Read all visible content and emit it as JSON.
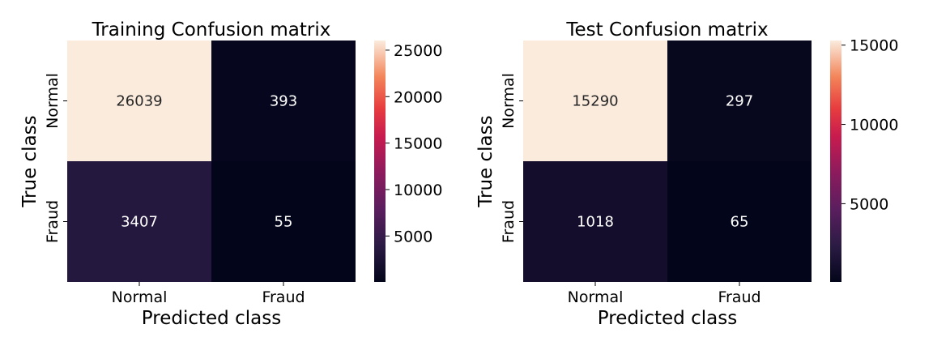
{
  "chart_data": [
    {
      "type": "heatmap",
      "title": "Training Confusion matrix",
      "xlabel": "Predicted class",
      "ylabel": "True class",
      "x_categories": [
        "Normal",
        "Fraud"
      ],
      "y_categories": [
        "Normal",
        "Fraud"
      ],
      "values": [
        [
          26039,
          393
        ],
        [
          3407,
          55
        ]
      ],
      "colormap": "rocket",
      "colorbar": {
        "range": [
          55,
          26039
        ],
        "ticks": [
          5000,
          10000,
          15000,
          20000,
          25000
        ],
        "tick_labels": [
          "5000",
          "10000",
          "15000",
          "20000",
          "25000"
        ]
      }
    },
    {
      "type": "heatmap",
      "title": "Test Confusion matrix",
      "xlabel": "Predicted class",
      "ylabel": "True class",
      "x_categories": [
        "Normal",
        "Fraud"
      ],
      "y_categories": [
        "Normal",
        "Fraud"
      ],
      "values": [
        [
          15290,
          297
        ],
        [
          1018,
          65
        ]
      ],
      "colormap": "rocket",
      "colorbar": {
        "range": [
          65,
          15290
        ],
        "ticks": [
          5000,
          10000,
          15000
        ],
        "tick_labels": [
          "5000",
          "10000",
          "15000"
        ]
      }
    }
  ]
}
